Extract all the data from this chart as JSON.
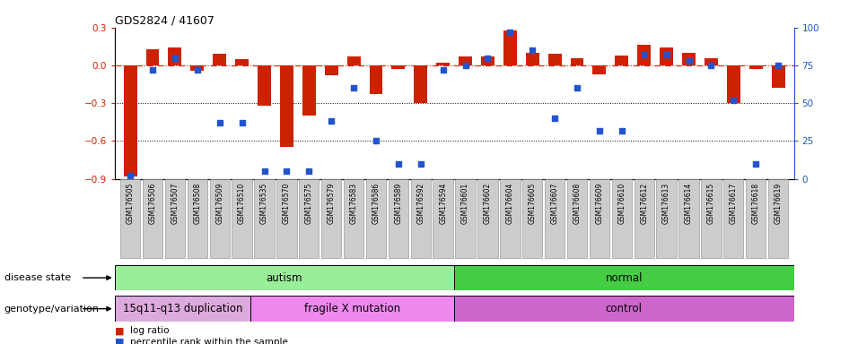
{
  "title": "GDS2824 / 41607",
  "samples": [
    "GSM176505",
    "GSM176506",
    "GSM176507",
    "GSM176508",
    "GSM176509",
    "GSM176510",
    "GSM176535",
    "GSM176570",
    "GSM176575",
    "GSM176579",
    "GSM176583",
    "GSM176586",
    "GSM176589",
    "GSM176592",
    "GSM176594",
    "GSM176601",
    "GSM176602",
    "GSM176604",
    "GSM176605",
    "GSM176607",
    "GSM176608",
    "GSM176609",
    "GSM176610",
    "GSM176612",
    "GSM176613",
    "GSM176614",
    "GSM176615",
    "GSM176617",
    "GSM176618",
    "GSM176619"
  ],
  "log_ratio": [
    -0.88,
    0.13,
    0.14,
    -0.04,
    0.09,
    0.05,
    -0.32,
    -0.65,
    -0.4,
    -0.08,
    0.07,
    -0.23,
    -0.03,
    -0.3,
    0.02,
    0.07,
    0.07,
    0.28,
    0.1,
    0.09,
    0.06,
    -0.07,
    0.08,
    0.16,
    0.14,
    0.1,
    0.06,
    -0.3,
    -0.03,
    -0.18
  ],
  "percentile_rank": [
    2,
    72,
    80,
    72,
    37,
    37,
    5,
    5,
    5,
    38,
    60,
    25,
    10,
    10,
    72,
    75,
    80,
    97,
    85,
    40,
    60,
    32,
    32,
    82,
    82,
    78,
    75,
    52,
    10,
    75
  ],
  "ylim_left": [
    -0.9,
    0.3
  ],
  "ylim_right": [
    0,
    100
  ],
  "yticks_left": [
    -0.9,
    -0.6,
    -0.3,
    0.0,
    0.3
  ],
  "yticks_right": [
    0,
    25,
    50,
    75,
    100
  ],
  "bar_color": "#CC2200",
  "dot_color": "#2255CC",
  "hline_color": "#CC2200",
  "dotted_lines": [
    -0.3,
    -0.6
  ],
  "disease_state_groups": [
    {
      "label": "autism",
      "start": 0,
      "end": 15,
      "color": "#99EE99"
    },
    {
      "label": "normal",
      "start": 15,
      "end": 30,
      "color": "#44CC44"
    }
  ],
  "genotype_groups": [
    {
      "label": "15q11-q13 duplication",
      "start": 0,
      "end": 6,
      "color": "#DDAADD"
    },
    {
      "label": "fragile X mutation",
      "start": 6,
      "end": 15,
      "color": "#EE88EE"
    },
    {
      "label": "control",
      "start": 15,
      "end": 30,
      "color": "#CC66CC"
    }
  ],
  "disease_state_label": "disease state",
  "genotype_label": "genotype/variation",
  "legend_red": "log ratio",
  "legend_blue": "percentile rank within the sample"
}
